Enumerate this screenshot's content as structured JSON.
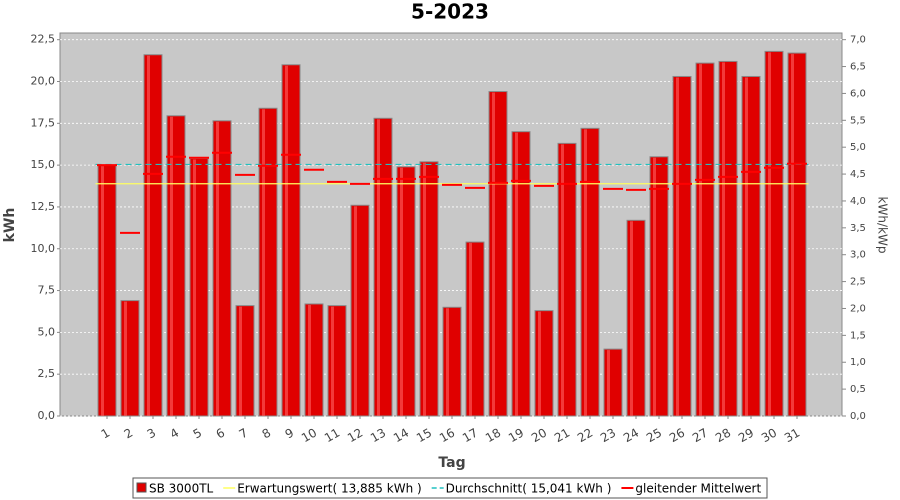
{
  "chart_data": {
    "type": "bar",
    "title": "5-2023",
    "x_label": "Tag",
    "y_label": "kWh",
    "y2_label": "kWh/kWp",
    "categories": [
      "1",
      "2",
      "3",
      "4",
      "5",
      "6",
      "7",
      "8",
      "9",
      "10",
      "11",
      "12",
      "13",
      "14",
      "15",
      "16",
      "17",
      "18",
      "19",
      "20",
      "21",
      "22",
      "23",
      "24",
      "25",
      "26",
      "27",
      "28",
      "29",
      "30",
      "31"
    ],
    "series": [
      {
        "name": "SB 3000TL",
        "color": "#e00000",
        "type": "bar",
        "values": [
          15.0,
          6.9,
          21.6,
          17.95,
          15.4,
          17.65,
          6.6,
          18.4,
          21.0,
          6.7,
          6.6,
          12.6,
          17.8,
          14.9,
          15.2,
          6.5,
          10.4,
          19.4,
          17.0,
          6.3,
          16.3,
          17.2,
          4.0,
          11.7,
          15.5,
          20.3,
          21.1,
          21.2,
          20.3,
          21.8,
          21.7
        ]
      },
      {
        "name": "gleitender Mittelwert",
        "color": "#ff0000",
        "type": "dash",
        "values": [
          15.0,
          10.95,
          14.48,
          15.5,
          15.44,
          15.74,
          14.42,
          14.96,
          15.62,
          14.72,
          14.0,
          13.88,
          14.18,
          14.18,
          14.3,
          13.82,
          13.64,
          13.94,
          14.06,
          13.76,
          13.88,
          14.0,
          13.58,
          13.52,
          13.58,
          13.88,
          14.12,
          14.3,
          14.6,
          14.84,
          15.08
        ]
      }
    ],
    "reference_lines": [
      {
        "name": "Erwartungswert( 13,885 kWh )",
        "color": "#ffff60",
        "value": 13.885,
        "dashed": false
      },
      {
        "name": "Durchschnitt( 15,041 kWh )",
        "color": "#20c0c0",
        "value": 15.041,
        "dashed": true
      }
    ],
    "ylim": [
      0,
      22.9
    ],
    "yticks": [
      {
        "value": 0,
        "label": "0,0"
      },
      {
        "value": 2.5,
        "label": "2,5"
      },
      {
        "value": 5,
        "label": "5,0"
      },
      {
        "value": 7.5,
        "label": "7,5"
      },
      {
        "value": 10,
        "label": "10,0"
      },
      {
        "value": 12.5,
        "label": "12,5"
      },
      {
        "value": 15,
        "label": "15,0"
      },
      {
        "value": 17.5,
        "label": "17,5"
      },
      {
        "value": 20,
        "label": "20,0"
      },
      {
        "value": 22.5,
        "label": "22,5"
      }
    ],
    "y2lim": [
      0,
      7.124
    ],
    "y2ticks": [
      {
        "value": 0,
        "label": "0,0"
      },
      {
        "value": 0.5,
        "label": "0,5"
      },
      {
        "value": 1,
        "label": "1,0"
      },
      {
        "value": 1.5,
        "label": "1,5"
      },
      {
        "value": 2,
        "label": "2,0"
      },
      {
        "value": 2.5,
        "label": "2,5"
      },
      {
        "value": 3,
        "label": "3,0"
      },
      {
        "value": 3.5,
        "label": "3,5"
      },
      {
        "value": 4,
        "label": "4,0"
      },
      {
        "value": 4.5,
        "label": "4,5"
      },
      {
        "value": 5,
        "label": "5,0"
      },
      {
        "value": 5.5,
        "label": "5,5"
      },
      {
        "value": 6,
        "label": "6,0"
      },
      {
        "value": 6.5,
        "label": "6,5"
      },
      {
        "value": 7,
        "label": "7,0"
      }
    ],
    "grid": true
  }
}
